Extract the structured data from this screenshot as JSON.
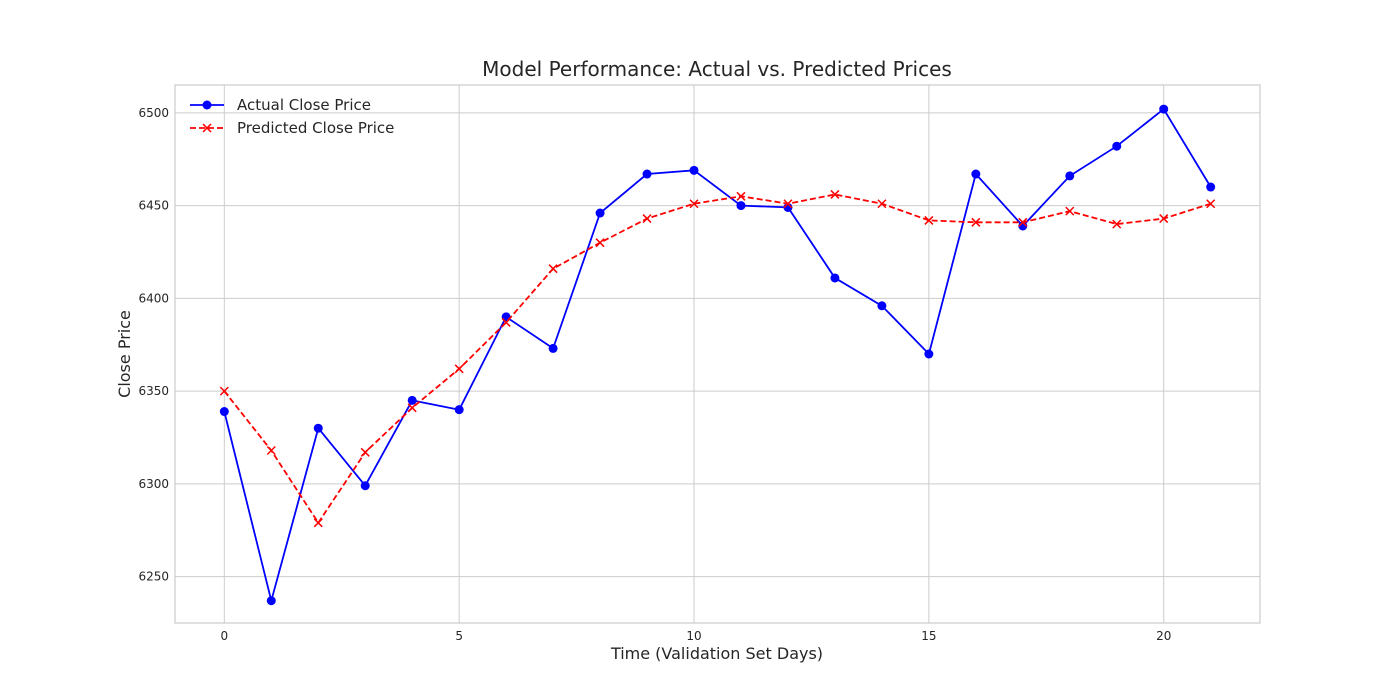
{
  "chart_data": {
    "type": "line",
    "title": "Model Performance: Actual vs. Predicted Prices",
    "xlabel": "Time (Validation Set Days)",
    "ylabel": "Close Price",
    "xlim": [
      -1.05,
      22.05
    ],
    "ylim": [
      6225,
      6515
    ],
    "xticks": [
      0,
      5,
      10,
      15,
      20
    ],
    "yticks": [
      6250,
      6300,
      6350,
      6400,
      6450,
      6500
    ],
    "grid": true,
    "legend_position": "top-left",
    "x": [
      0,
      1,
      2,
      3,
      4,
      5,
      6,
      7,
      8,
      9,
      10,
      11,
      12,
      13,
      14,
      15,
      16,
      17,
      18,
      19,
      20,
      21
    ],
    "series": [
      {
        "name": "Actual Close Price",
        "color": "#0000ff",
        "style": "solid",
        "marker": "circle",
        "values": [
          6339,
          6237,
          6330,
          6299,
          6345,
          6340,
          6390,
          6373,
          6446,
          6467,
          6469,
          6450,
          6449,
          6411,
          6396,
          6370,
          6467,
          6439,
          6466,
          6482,
          6502,
          6460
        ]
      },
      {
        "name": "Predicted Close Price",
        "color": "#ff0000",
        "style": "dashed",
        "marker": "x",
        "values": [
          6350,
          6318,
          6279,
          6317,
          6341,
          6362,
          6387,
          6416,
          6430,
          6443,
          6451,
          6455,
          6451,
          6456,
          6451,
          6442,
          6441,
          6441,
          6447,
          6440,
          6443,
          6451
        ]
      }
    ]
  }
}
